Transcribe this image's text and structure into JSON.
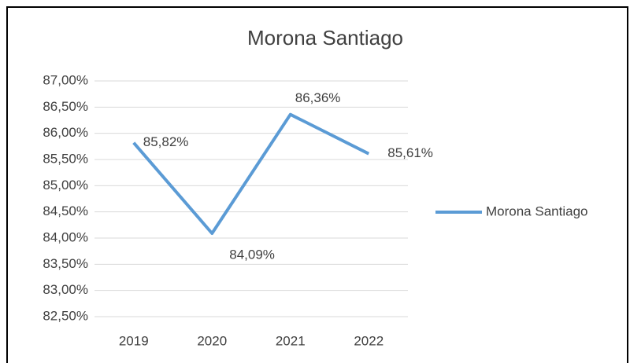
{
  "chart_data": {
    "type": "line",
    "title": "Morona Santiago",
    "categories": [
      "2019",
      "2020",
      "2021",
      "2022"
    ],
    "series": [
      {
        "name": "Morona Santiago",
        "color": "#5b9bd5",
        "values": [
          85.82,
          84.09,
          86.36,
          85.61
        ],
        "value_labels": [
          "85,82%",
          "84,09%",
          "86,36%",
          "85,61%"
        ]
      }
    ],
    "ylim": [
      82.5,
      87
    ],
    "yticks": [
      {
        "value": 82.5,
        "label": "82,50%"
      },
      {
        "value": 83,
        "label": "83,00%"
      },
      {
        "value": 83.5,
        "label": "83,50%"
      },
      {
        "value": 84,
        "label": "84,00%"
      },
      {
        "value": 84.5,
        "label": "84,50%"
      },
      {
        "value": 85,
        "label": "85,00%"
      },
      {
        "value": 85.5,
        "label": "85,50%"
      },
      {
        "value": 86,
        "label": "86,00%"
      },
      {
        "value": 86.5,
        "label": "86,50%"
      },
      {
        "value": 87,
        "label": "87,00%"
      }
    ],
    "grid": true,
    "legend": "right"
  }
}
